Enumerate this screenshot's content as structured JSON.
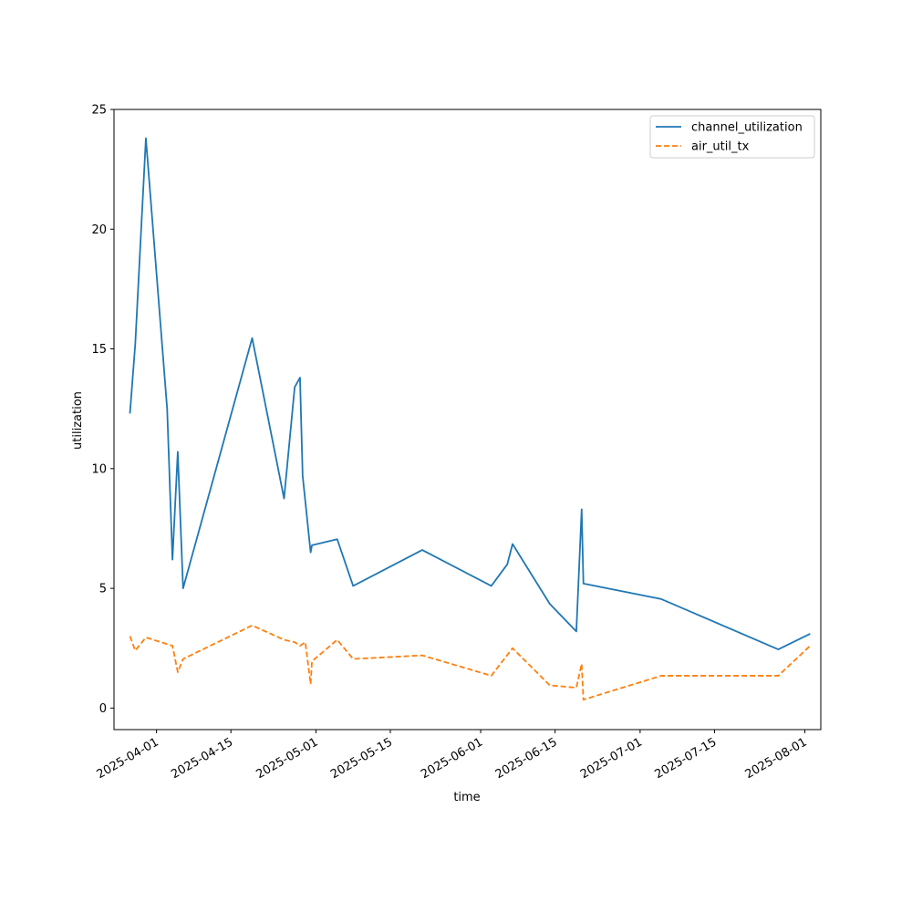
{
  "chart_data": {
    "type": "line",
    "title": "",
    "xlabel": "time",
    "ylabel": "utilization",
    "xlim": [
      "2025-03-24",
      "2025-08-04"
    ],
    "ylim": [
      -0.9,
      25
    ],
    "grid": false,
    "legend_position": "top-right",
    "x_ticks": [
      "2025-04-01",
      "2025-04-15",
      "2025-05-01",
      "2025-05-15",
      "2025-06-01",
      "2025-06-15",
      "2025-07-01",
      "2025-07-15",
      "2025-08-01"
    ],
    "y_ticks": [
      0,
      5,
      10,
      15,
      20,
      25
    ],
    "series": [
      {
        "name": "channel_utilization",
        "color": "#1f77b4",
        "dash": "solid",
        "points": [
          [
            "2025-03-27",
            12.3
          ],
          [
            "2025-03-28",
            15.2
          ],
          [
            "2025-03-30",
            23.8
          ],
          [
            "2025-04-03",
            12.5
          ],
          [
            "2025-04-04",
            6.2
          ],
          [
            "2025-04-05",
            10.7
          ],
          [
            "2025-04-06",
            5.0
          ],
          [
            "2025-04-19",
            15.45
          ],
          [
            "2025-04-25",
            8.75
          ],
          [
            "2025-04-27",
            13.4
          ],
          [
            "2025-04-28",
            13.8
          ],
          [
            "2025-04-28 12:00",
            9.7
          ],
          [
            "2025-04-30",
            6.5
          ],
          [
            "2025-04-30 06:00",
            6.8
          ],
          [
            "2025-05-05",
            7.05
          ],
          [
            "2025-05-08",
            5.1
          ],
          [
            "2025-05-21",
            6.6
          ],
          [
            "2025-06-03",
            5.1
          ],
          [
            "2025-06-06",
            6.0
          ],
          [
            "2025-06-07",
            6.85
          ],
          [
            "2025-06-14",
            4.35
          ],
          [
            "2025-06-19",
            3.2
          ],
          [
            "2025-06-20",
            8.3
          ],
          [
            "2025-06-20 08:00",
            5.2
          ],
          [
            "2025-07-05",
            4.55
          ],
          [
            "2025-07-27",
            2.45
          ],
          [
            "2025-08-02",
            3.1
          ]
        ]
      },
      {
        "name": "air_util_tx",
        "color": "#ff7f0e",
        "dash": "dashed",
        "points": [
          [
            "2025-03-27",
            3.0
          ],
          [
            "2025-03-28",
            2.4
          ],
          [
            "2025-03-30",
            2.95
          ],
          [
            "2025-04-04",
            2.6
          ],
          [
            "2025-04-05",
            1.5
          ],
          [
            "2025-04-06",
            2.05
          ],
          [
            "2025-04-19",
            3.45
          ],
          [
            "2025-04-25",
            2.85
          ],
          [
            "2025-04-27",
            2.75
          ],
          [
            "2025-04-28",
            2.6
          ],
          [
            "2025-04-29",
            2.75
          ],
          [
            "2025-04-30",
            1.0
          ],
          [
            "2025-04-30 06:00",
            1.95
          ],
          [
            "2025-05-05",
            2.85
          ],
          [
            "2025-05-08",
            2.05
          ],
          [
            "2025-05-21",
            2.2
          ],
          [
            "2025-06-03",
            1.35
          ],
          [
            "2025-06-07",
            2.5
          ],
          [
            "2025-06-14",
            0.95
          ],
          [
            "2025-06-19",
            0.85
          ],
          [
            "2025-06-20",
            1.85
          ],
          [
            "2025-06-20 08:00",
            0.35
          ],
          [
            "2025-07-05",
            1.35
          ],
          [
            "2025-07-27",
            1.35
          ],
          [
            "2025-08-02",
            2.6
          ]
        ]
      }
    ]
  }
}
